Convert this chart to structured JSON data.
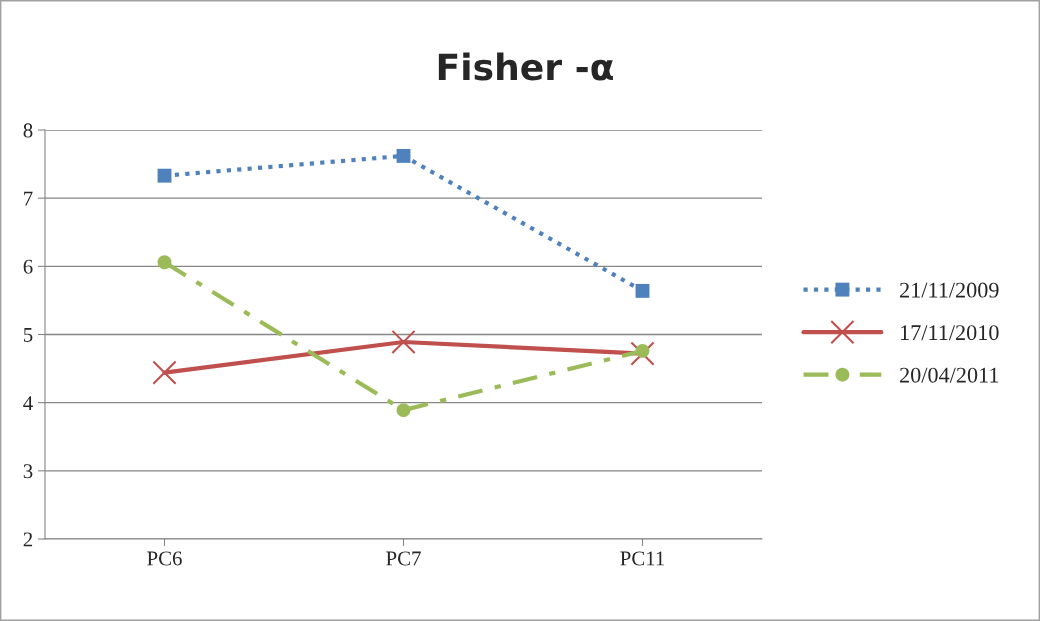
{
  "chart_data": {
    "type": "line",
    "title": "Fisher -α",
    "categories": [
      "PC6",
      "PC7",
      "PC11"
    ],
    "series": [
      {
        "name": "21/11/2009",
        "color": "#4f81bd",
        "values": [
          7.33,
          7.62,
          5.64
        ],
        "marker": "square",
        "line_style": "dotted"
      },
      {
        "name": "17/11/2010",
        "color": "#c0504d",
        "values": [
          4.44,
          4.89,
          4.72
        ],
        "marker": "cross",
        "line_style": "solid"
      },
      {
        "name": "20/04/2011",
        "color": "#9bbb59",
        "values": [
          6.06,
          3.89,
          4.76
        ],
        "marker": "circle",
        "line_style": "dashed"
      }
    ],
    "ylim": [
      2,
      8
    ],
    "yticks": [
      2,
      3,
      4,
      5,
      6,
      7,
      8
    ],
    "grid": "y",
    "legend": "right"
  }
}
